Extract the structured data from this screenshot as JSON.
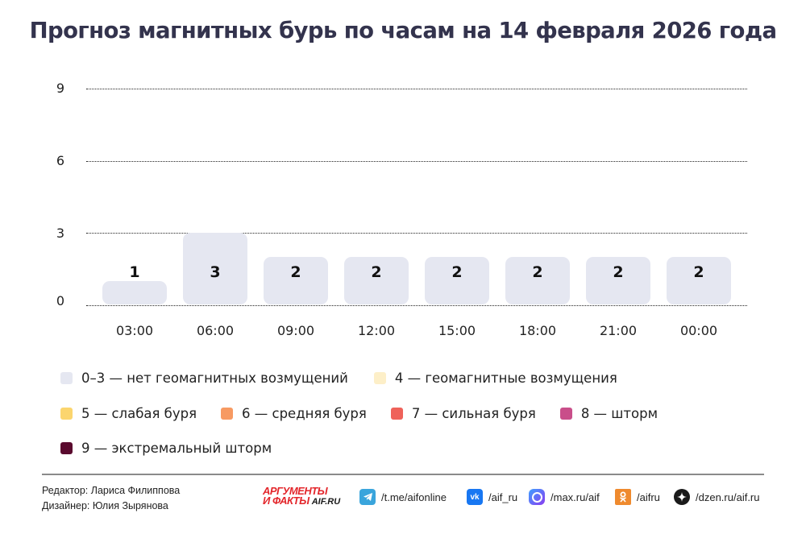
{
  "title": "Прогноз магнитных бурь по часам на 14 февраля 2026 года",
  "chart_data": {
    "type": "bar",
    "title": "Прогноз магнитных бурь по часам на 14 февраля 2026 года",
    "categories": [
      "03:00",
      "06:00",
      "09:00",
      "12:00",
      "15:00",
      "18:00",
      "21:00",
      "00:00"
    ],
    "values": [
      1,
      3,
      2,
      2,
      2,
      2,
      2,
      2
    ],
    "value_labels": [
      "1",
      "3",
      "2",
      "2",
      "2",
      "2",
      "2",
      "2"
    ],
    "xlabel": "",
    "ylabel": "",
    "ylim": [
      0,
      9
    ],
    "yticks": [
      "0",
      "3",
      "6",
      "9"
    ],
    "grid": true,
    "bar_color": "#e5e7f1",
    "legend_position": "bottom",
    "legend": [
      {
        "label": "0–3 — нет геомагнитных возмущений",
        "color": "#e5e7f1"
      },
      {
        "label": "4 — геомагнитные возмущения",
        "color": "#fdefc8"
      },
      {
        "label": "5 — слабая буря",
        "color": "#fbd56e"
      },
      {
        "label": "6 — средняя буря",
        "color": "#f79a62"
      },
      {
        "label": "7 — сильная буря",
        "color": "#ef625a"
      },
      {
        "label": "8 — шторм",
        "color": "#c94e8a"
      },
      {
        "label": "9 — экстремальный шторм",
        "color": "#5a0a2e"
      }
    ]
  },
  "footer": {
    "editor": "Редактор: Лариса Филиппова",
    "designer": "Дизайнер: Юлия Зырянова",
    "logo": {
      "line1": "АРГУМЕНТЫ",
      "line2": "И ФАКТЫ",
      "site": "AIF.RU"
    },
    "social": [
      {
        "icon": "telegram-icon",
        "text": "/t.me/aifonline",
        "color": "#3aa5dc"
      },
      {
        "icon": "vk-icon",
        "text": "/aif_ru",
        "color": "#1877f2"
      },
      {
        "icon": "max-icon",
        "text": "/max.ru/aif",
        "color": "#5b4cf0"
      },
      {
        "icon": "odnoklassniki-icon",
        "text": "/aifru",
        "color": "#ef8a2e"
      },
      {
        "icon": "dzen-icon",
        "text": "/dzen.ru/aif.ru",
        "color": "#1a1a1a"
      }
    ]
  }
}
